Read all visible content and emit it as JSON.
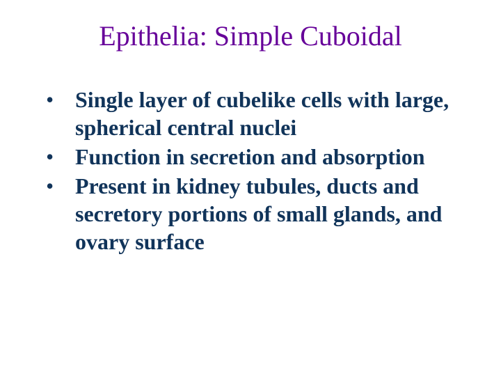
{
  "slide": {
    "title": "Epithelia: Simple Cuboidal",
    "title_color": "#660099",
    "title_fontsize": 40,
    "body_color": "#11345a",
    "body_fontsize": 32,
    "body_lineheight": 40,
    "background_color": "#ffffff",
    "bullets": [
      "Single layer of cubelike cells with large, spherical central nuclei",
      "Function in secretion and absorption",
      "Present in kidney tubules, ducts and secretory portions of small glands, and ovary surface"
    ]
  }
}
